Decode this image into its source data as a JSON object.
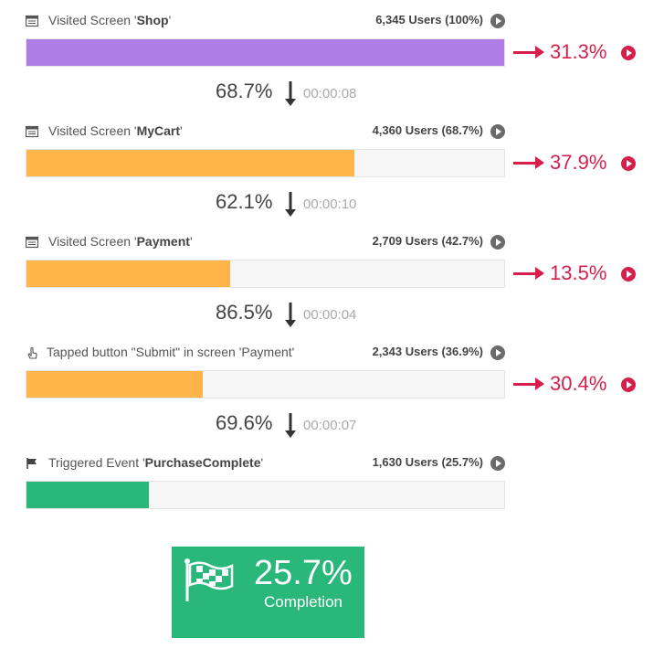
{
  "steps": [
    {
      "prefix": "Visited Screen '",
      "name": "Shop",
      "suffix": "'",
      "users": "6,345 Users (100%)",
      "fill_percent": 100,
      "color": "#b07ce6",
      "icon": "screen-icon"
    },
    {
      "prefix": "Visited Screen '",
      "name": "MyCart",
      "suffix": "'",
      "users": "4,360 Users (68.7%)",
      "fill_percent": 68.7,
      "color": "#ffb549",
      "icon": "screen-icon"
    },
    {
      "prefix": "Visited Screen '",
      "name": "Payment",
      "suffix": "'",
      "users": "2,709 Users (42.7%)",
      "fill_percent": 42.7,
      "color": "#ffb549",
      "icon": "screen-icon"
    },
    {
      "prefix": "Tapped button \"Submit\" in screen 'Payment'",
      "name": "",
      "suffix": "",
      "users": "2,343 Users (36.9%)",
      "fill_percent": 36.9,
      "color": "#ffb549",
      "icon": "tap-hand-icon"
    },
    {
      "prefix": "Triggered Event '",
      "name": "PurchaseComplete",
      "suffix": "'",
      "users": "1,630 Users (25.7%)",
      "fill_percent": 25.7,
      "color": "#29b77a",
      "icon": "flag-icon"
    }
  ],
  "dropoffs": [
    "31.3%",
    "37.9%",
    "13.5%",
    "30.4%"
  ],
  "conversions": [
    {
      "pct": "68.7%",
      "time": "00:00:08"
    },
    {
      "pct": "62.1%",
      "time": "00:00:10"
    },
    {
      "pct": "86.5%",
      "time": "00:00:04"
    },
    {
      "pct": "69.6%",
      "time": "00:00:07"
    }
  ],
  "completion": {
    "pct": "25.7%",
    "label": "Completion",
    "color": "#29b77a"
  },
  "colors": {
    "dropoff": "#d6204b",
    "play_button": "#6b6b6b"
  }
}
